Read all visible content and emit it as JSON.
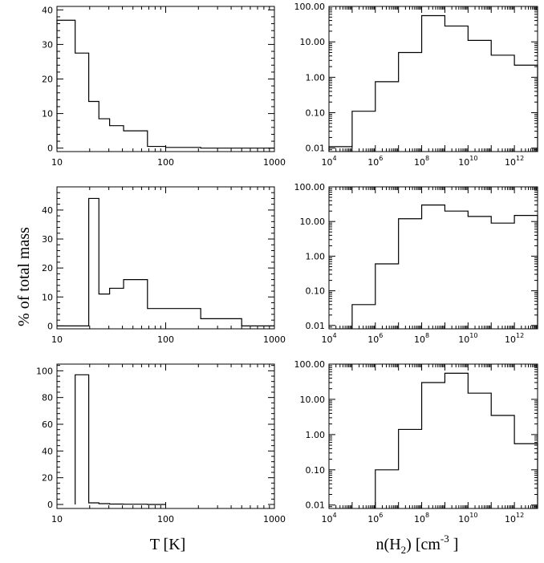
{
  "labels": {
    "ylabel": "% of total mass",
    "xlabel_left": "T [K]",
    "xlabel_right_pre": "n(H",
    "xlabel_right_sub": "2",
    "xlabel_right_mid": ") [cm",
    "xlabel_right_sup": "-3",
    "xlabel_right_post": " ]"
  },
  "chart_data": [
    {
      "id": "T1",
      "type": "bar",
      "xscale": "log",
      "yscale": "linear",
      "xlim": [
        10,
        1000
      ],
      "ylim": [
        -1,
        41
      ],
      "xticks": [
        10,
        100,
        1000
      ],
      "xtick_labels": [
        "10",
        "100",
        "1000"
      ],
      "yticks": [
        0,
        10,
        20,
        30,
        40
      ],
      "ytick_labels": [
        "0",
        "10",
        "20",
        "30",
        "40"
      ],
      "edges": [
        10,
        14.7,
        19.6,
        24.3,
        30.5,
        41,
        68,
        100,
        210,
        1000
      ],
      "values": [
        37,
        27.5,
        13.5,
        8.5,
        6.5,
        5,
        0.5,
        0.2,
        0
      ]
    },
    {
      "id": "n1",
      "type": "bar",
      "xscale": "log",
      "yscale": "log",
      "xlim": [
        10000,
        10000000000000
      ],
      "ylim": [
        0.008,
        100
      ],
      "xticks": [
        10000,
        1000000,
        100000000,
        10000000000,
        1000000000000
      ],
      "xtick_labels": [
        "10|4",
        "10|6",
        "10|8",
        "10|10",
        "10|12"
      ],
      "yticks": [
        0.01,
        0.1,
        1,
        10,
        100
      ],
      "ytick_labels": [
        "0.01",
        "0.10",
        "1.00",
        "10.00",
        "100.00"
      ],
      "edges": [
        10000,
        100000,
        1000000,
        10000000,
        100000000,
        1000000000,
        10000000000,
        100000000000,
        1000000000000,
        10000000000000
      ],
      "values": [
        0.011,
        0.11,
        0.75,
        5,
        55,
        28,
        11,
        4.2,
        2.2
      ]
    },
    {
      "id": "T2",
      "type": "bar",
      "xscale": "log",
      "yscale": "linear",
      "xlim": [
        10,
        1000
      ],
      "ylim": [
        -1,
        48
      ],
      "xticks": [
        10,
        100,
        1000
      ],
      "xtick_labels": [
        "10",
        "100",
        "1000"
      ],
      "yticks": [
        0,
        10,
        20,
        30,
        40
      ],
      "ytick_labels": [
        "0",
        "10",
        "20",
        "30",
        "40"
      ],
      "edges": [
        10,
        19.6,
        24.3,
        30.5,
        41,
        68,
        100,
        210,
        500,
        1000
      ],
      "values": [
        0,
        44,
        11,
        13,
        16,
        6,
        6,
        2.5,
        0
      ]
    },
    {
      "id": "n2",
      "type": "bar",
      "xscale": "log",
      "yscale": "log",
      "xlim": [
        10000,
        10000000000000
      ],
      "ylim": [
        0.008,
        100
      ],
      "xticks": [
        10000,
        1000000,
        100000000,
        10000000000,
        1000000000000
      ],
      "xtick_labels": [
        "10|4",
        "10|6",
        "10|8",
        "10|10",
        "10|12"
      ],
      "yticks": [
        0.01,
        0.1,
        1,
        10,
        100
      ],
      "ytick_labels": [
        "0.01",
        "0.10",
        "1.00",
        "10.00",
        "100.00"
      ],
      "edges": [
        100000,
        1000000,
        10000000,
        100000000,
        1000000000,
        10000000000,
        100000000000,
        1000000000000,
        10000000000000
      ],
      "values": [
        0.04,
        0.6,
        12,
        30,
        20,
        14,
        9,
        15
      ]
    },
    {
      "id": "T3",
      "type": "bar",
      "xscale": "log",
      "yscale": "linear",
      "xlim": [
        10,
        1000
      ],
      "ylim": [
        -3,
        105
      ],
      "xticks": [
        10,
        100,
        1000
      ],
      "xtick_labels": [
        "10",
        "100",
        "1000"
      ],
      "yticks": [
        0,
        20,
        40,
        60,
        80,
        100
      ],
      "ytick_labels": [
        "0",
        "20",
        "40",
        "60",
        "80",
        "100"
      ],
      "edges": [
        14.7,
        19.6,
        24.3,
        30.5,
        41,
        68,
        100
      ],
      "values": [
        97,
        1.2,
        0.6,
        0.3,
        0.2,
        0
      ]
    },
    {
      "id": "n3",
      "type": "bar",
      "xscale": "log",
      "yscale": "log",
      "xlim": [
        10000,
        10000000000000
      ],
      "ylim": [
        0.008,
        100
      ],
      "xticks": [
        10000,
        1000000,
        100000000,
        10000000000,
        1000000000000
      ],
      "xtick_labels": [
        "10|4",
        "10|6",
        "10|8",
        "10|10",
        "10|12"
      ],
      "yticks": [
        0.01,
        0.1,
        1,
        10,
        100
      ],
      "ytick_labels": [
        "0.01",
        "0.10",
        "1.00",
        "10.00",
        "100.00"
      ],
      "edges": [
        1000000,
        10000000,
        100000000,
        1000000000,
        10000000000,
        100000000000,
        1000000000000,
        10000000000000
      ],
      "values": [
        0.1,
        1.4,
        30,
        55,
        15,
        3.5,
        0.55
      ]
    }
  ]
}
